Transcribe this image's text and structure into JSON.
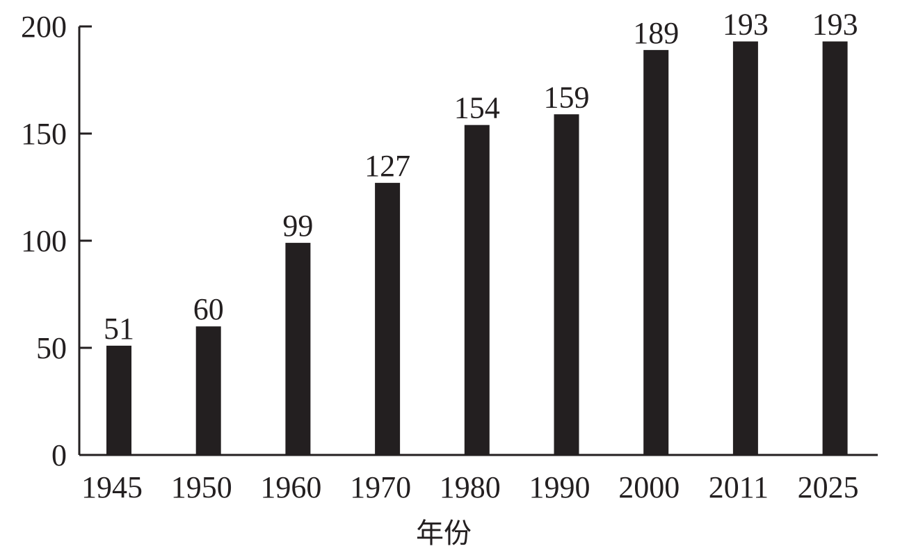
{
  "chart_data": {
    "type": "bar",
    "categories": [
      "1945",
      "1950",
      "1960",
      "1970",
      "1980",
      "1990",
      "2000",
      "2011",
      "2025"
    ],
    "values": [
      51,
      60,
      99,
      127,
      154,
      159,
      189,
      193,
      193
    ],
    "data_labels": [
      "51",
      "60",
      "99",
      "127",
      "154",
      "159",
      "189",
      "193",
      "193"
    ],
    "title": "",
    "xlabel": "年份",
    "ylabel": "",
    "ylim": [
      0,
      200
    ],
    "yticks": [
      0,
      50,
      100,
      150,
      200
    ],
    "ytick_labels": [
      "0",
      "50",
      "100",
      "150",
      "200"
    ],
    "grid": false,
    "legend": "none",
    "colors": {
      "bar": "#231f20",
      "axis": "#231f20",
      "background": "#ffffff"
    }
  }
}
